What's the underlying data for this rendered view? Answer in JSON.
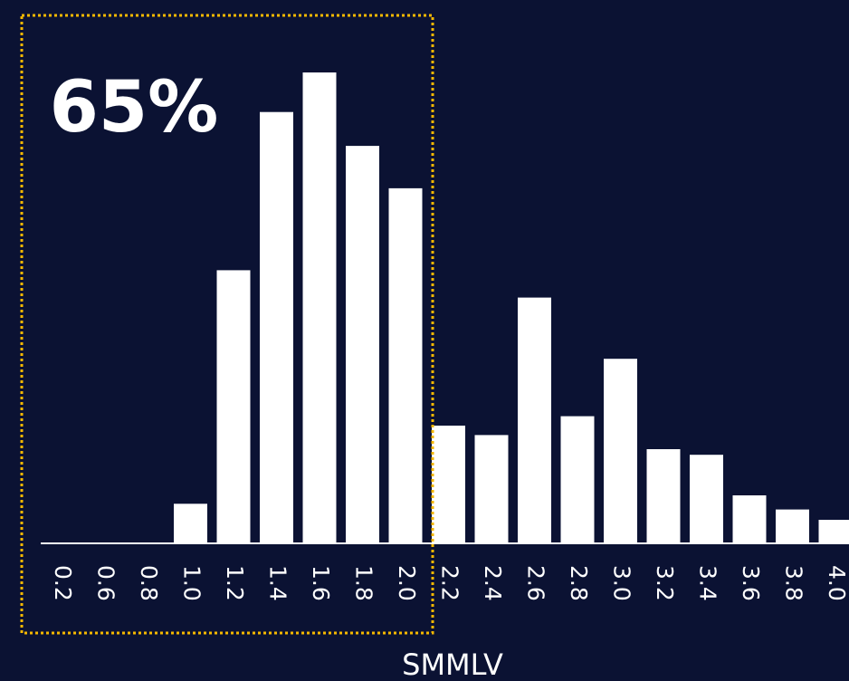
{
  "chart_data": {
    "type": "bar",
    "categories": [
      "0.2",
      "0.6",
      "0.8",
      "1.0",
      "1.2",
      "1.4",
      "1.6",
      "1.8",
      "2.0",
      "2.2",
      "2.4",
      "2.6",
      "2.8",
      "3.0",
      "3.2",
      "3.4",
      "3.6",
      "3.8",
      "4.0"
    ],
    "values": [
      0,
      0,
      0,
      4.2,
      29,
      45.8,
      50,
      42.2,
      37.7,
      12.5,
      11.5,
      26.1,
      13.5,
      19.6,
      10,
      9.4,
      5.1,
      3.6,
      2.5
    ],
    "xlabel": "SMMLV",
    "ylabel": "",
    "ylim": [
      0,
      50
    ],
    "grid": false,
    "colors": {
      "background": "#0b1233",
      "bars": "#ffffff",
      "highlight_box": "#f5b800"
    },
    "annotation": {
      "text": "65%",
      "highlight_range": [
        "0.2",
        "2.0"
      ],
      "style": "dotted"
    }
  }
}
